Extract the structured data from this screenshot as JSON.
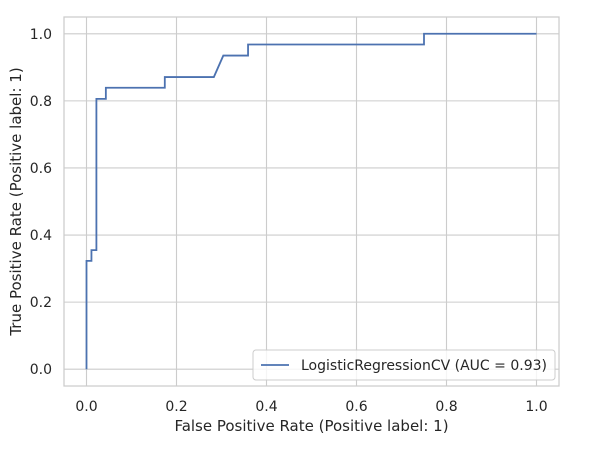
{
  "chart_data": {
    "type": "line",
    "xlabel": "False Positive Rate (Positive label: 1)",
    "ylabel": "True Positive Rate (Positive label: 1)",
    "xlim": [
      -0.05,
      1.05
    ],
    "ylim": [
      -0.05,
      1.05
    ],
    "xticks": [
      0.0,
      0.2,
      0.4,
      0.6,
      0.8,
      1.0
    ],
    "yticks": [
      0.0,
      0.2,
      0.4,
      0.6,
      0.8,
      1.0
    ],
    "xtick_labels": [
      "0.0",
      "0.2",
      "0.4",
      "0.6",
      "0.8",
      "1.0"
    ],
    "ytick_labels": [
      "0.0",
      "0.2",
      "0.4",
      "0.6",
      "0.8",
      "1.0"
    ],
    "grid": true,
    "legend_position": "lower-right",
    "series": [
      {
        "name": "LogisticRegressionCV (AUC = 0.93)",
        "color": "#4c72b0",
        "x": [
          0.0,
          0.0,
          0.0,
          0.011,
          0.011,
          0.022,
          0.022,
          0.043,
          0.043,
          0.174,
          0.174,
          0.283,
          0.304,
          0.304,
          0.359,
          0.359,
          0.75,
          0.75,
          1.0
        ],
        "y": [
          0.0,
          0.323,
          0.323,
          0.323,
          0.355,
          0.355,
          0.806,
          0.806,
          0.839,
          0.839,
          0.871,
          0.871,
          0.935,
          0.935,
          0.935,
          0.968,
          0.968,
          1.0,
          1.0
        ]
      }
    ]
  }
}
